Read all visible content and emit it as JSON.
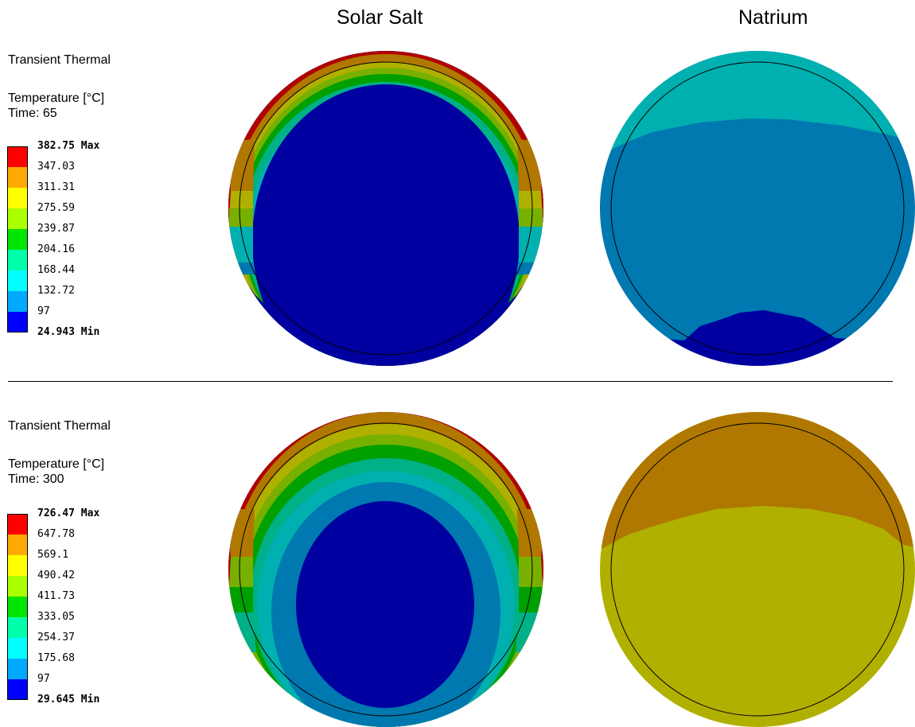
{
  "column_titles": [
    "Solar Salt",
    "Natrium"
  ],
  "panels": [
    {
      "analysis": "Transient Thermal",
      "quantity": "Temperature [°C]",
      "time": "Time: 65",
      "legend": [
        {
          "value": "382.75 Max",
          "color": "#ff0000",
          "bold": true
        },
        {
          "value": "347.03",
          "color": "#ffaa00"
        },
        {
          "value": "311.31",
          "color": "#ffff00"
        },
        {
          "value": "275.59",
          "color": "#aaff00"
        },
        {
          "value": "239.87",
          "color": "#00e600"
        },
        {
          "value": "204.16",
          "color": "#00ffaa"
        },
        {
          "value": "168.44",
          "color": "#00ffff"
        },
        {
          "value": "132.72",
          "color": "#00aaff"
        },
        {
          "value": "97",
          "color": "#0000ff"
        },
        {
          "value": "24.943 Min",
          "bold": true
        }
      ]
    },
    {
      "analysis": "Transient Thermal",
      "quantity": "Temperature [°C]",
      "time": "Time: 300",
      "legend": [
        {
          "value": "726.47 Max",
          "color": "#ff0000",
          "bold": true
        },
        {
          "value": "647.78",
          "color": "#ffaa00"
        },
        {
          "value": "569.1",
          "color": "#ffff00"
        },
        {
          "value": "490.42",
          "color": "#aaff00"
        },
        {
          "value": "411.73",
          "color": "#00e600"
        },
        {
          "value": "333.05",
          "color": "#00ffaa"
        },
        {
          "value": "254.37",
          "color": "#00ffff"
        },
        {
          "value": "175.68",
          "color": "#00aaff"
        },
        {
          "value": "97",
          "color": "#0000ff"
        },
        {
          "value": "29.645 Min",
          "bold": true
        }
      ]
    }
  ],
  "contour_colors": {
    "red": "#b00000",
    "orange": "#b07800",
    "yellow": "#b0b000",
    "lime": "#78b000",
    "green": "#00a000",
    "teal": "#00b086",
    "cyan": "#00b0b0",
    "steel": "#0078b0",
    "blue": "#0000a0"
  }
}
